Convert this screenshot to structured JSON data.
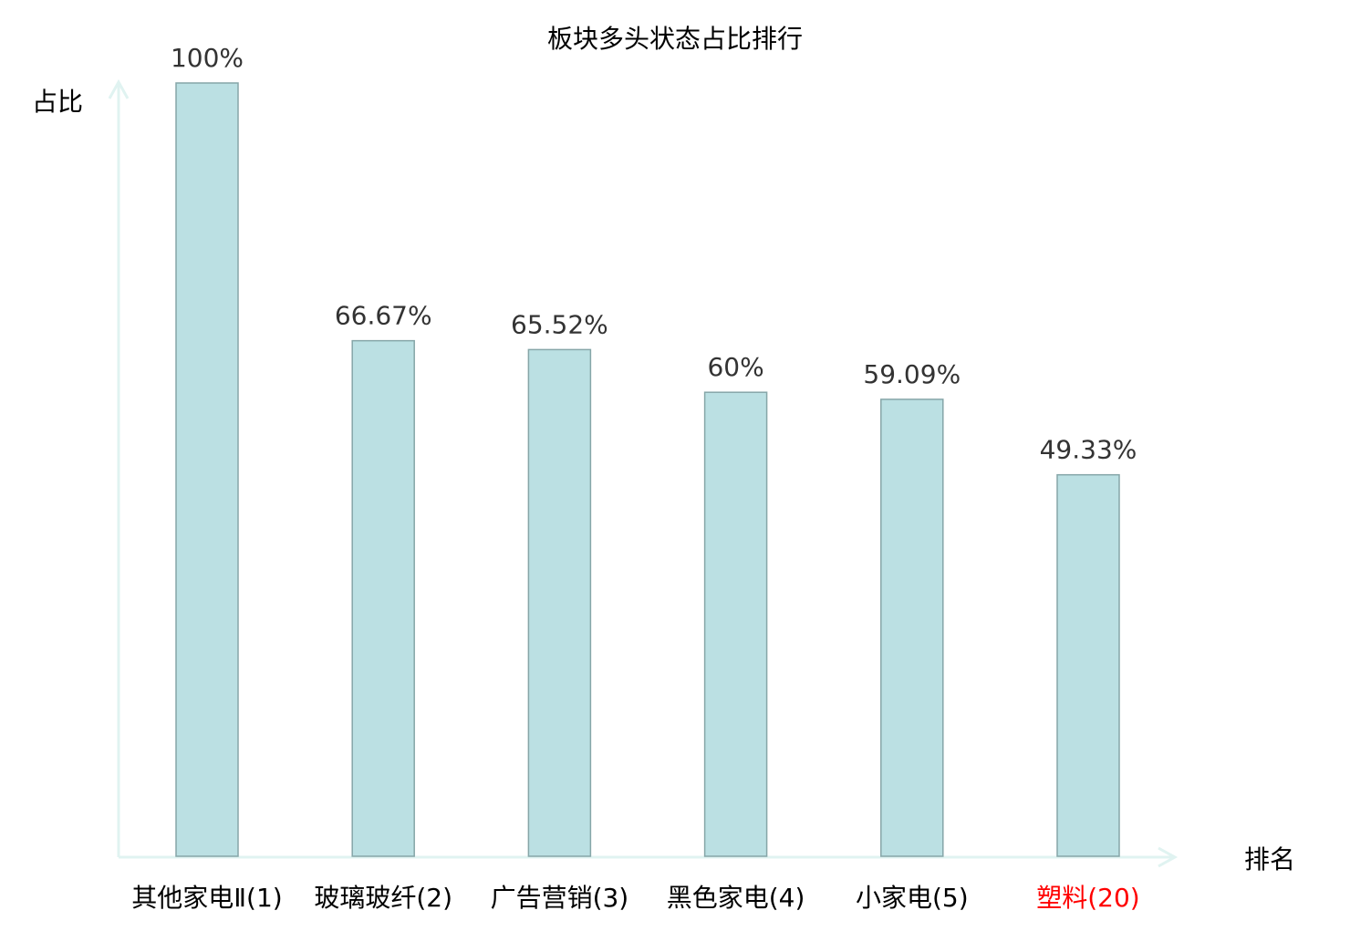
{
  "chart_data": {
    "type": "bar",
    "title": "板块多头状态占比排行",
    "xlabel": "排名",
    "ylabel": "占比",
    "ylim": [
      0,
      100
    ],
    "grid": false,
    "categories": [
      "其他家电Ⅱ(1)",
      "玻璃玻纤(2)",
      "广告营销(3)",
      "黑色家电(4)",
      "小家电(5)",
      "塑料(20)"
    ],
    "values": [
      100,
      66.67,
      65.52,
      60,
      59.09,
      49.33
    ],
    "data_labels": [
      "100%",
      "66.67%",
      "65.52%",
      "60%",
      "59.09%",
      "49.33%"
    ],
    "highlight_index": 5,
    "colors": {
      "bar_fill": "#bbe0e3",
      "bar_stroke": "#86a6a8",
      "axis": "#e0f3f1",
      "label_text": "#333333",
      "highlight_text": "#ff0000"
    }
  }
}
